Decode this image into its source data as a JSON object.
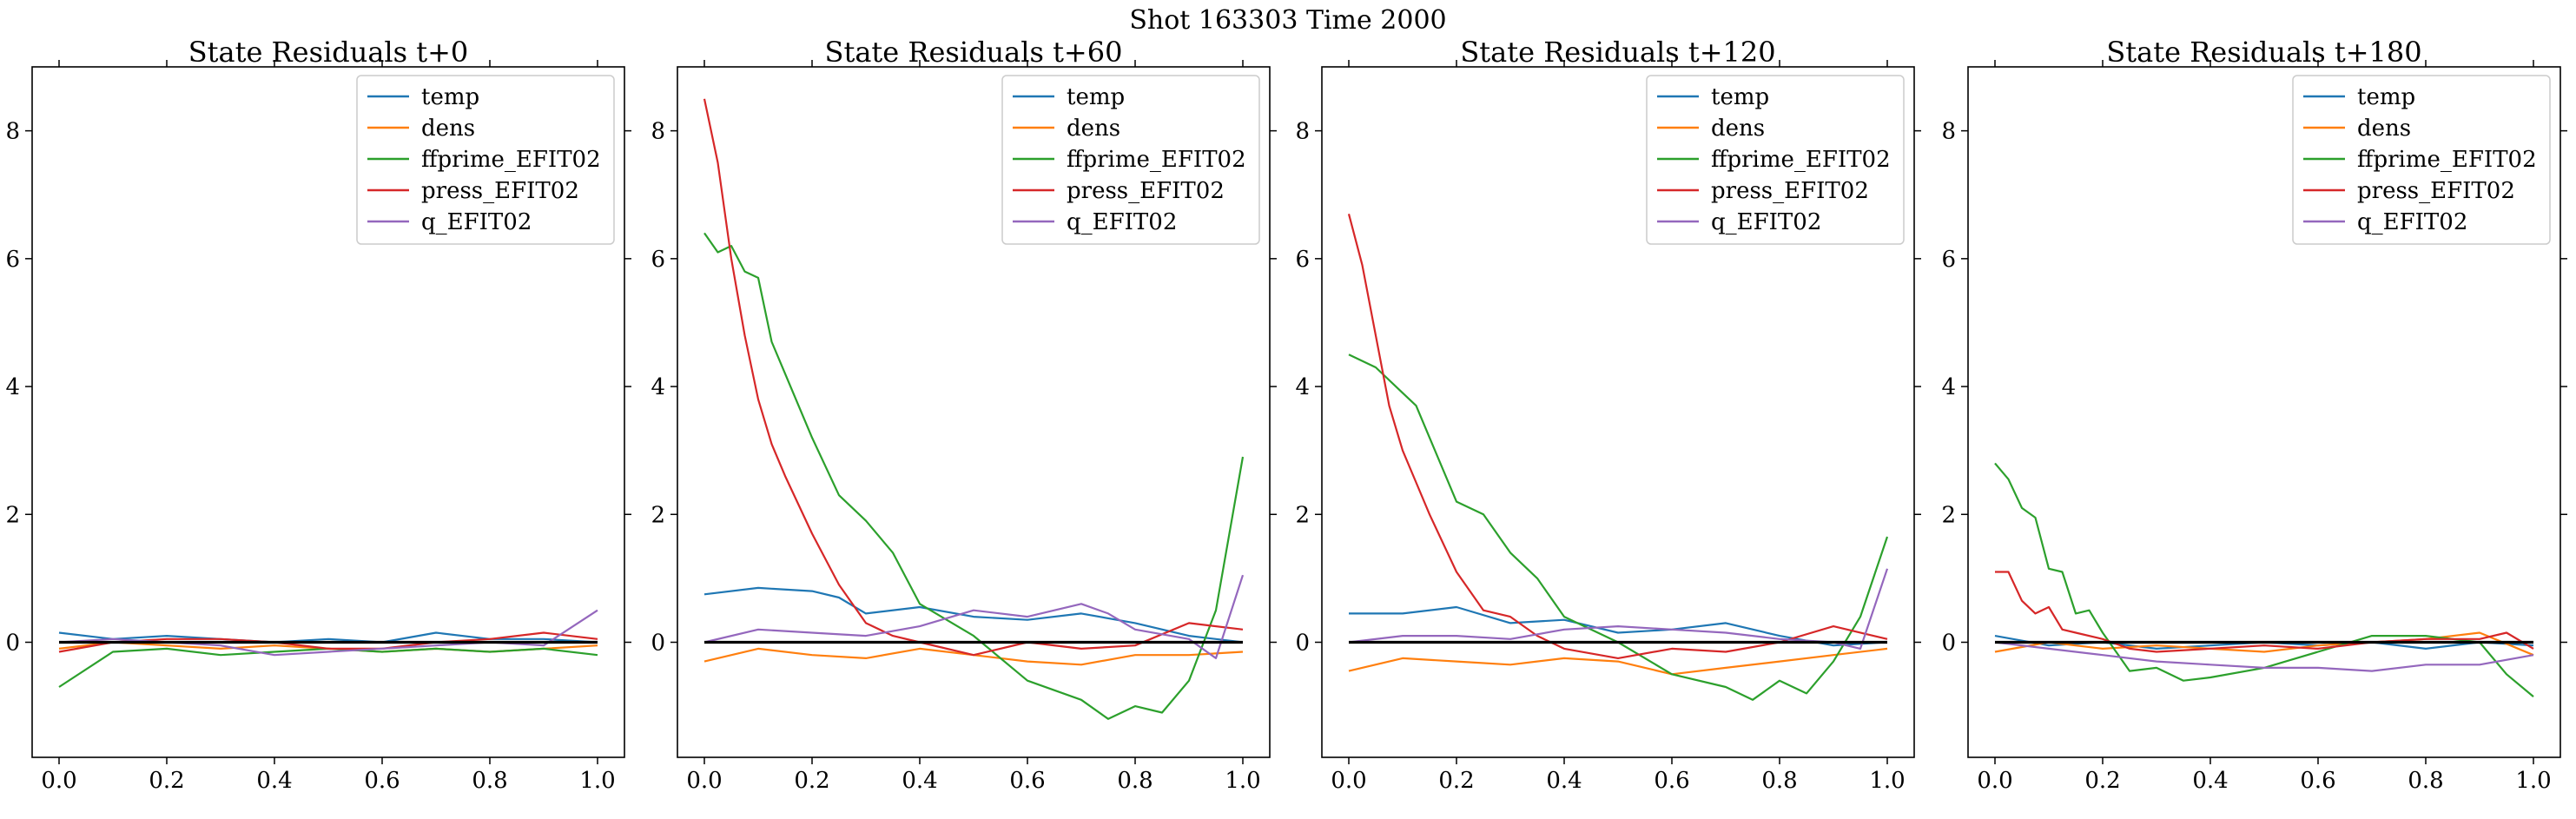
{
  "figure": {
    "suptitle": "Shot 163303   Time 2000"
  },
  "chart_data": [
    {
      "type": "line",
      "title": "State Residuals t+0",
      "xlabel": "",
      "ylabel": "",
      "xlim": [
        -0.05,
        1.05
      ],
      "ylim": [
        -1.8,
        9.0
      ],
      "xticks": [
        0.0,
        0.2,
        0.4,
        0.6,
        0.8,
        1.0
      ],
      "xtick_labels": [
        "0.0",
        "0.2",
        "0.4",
        "0.6",
        "0.8",
        "1.0"
      ],
      "yticks": [
        0,
        2,
        4,
        6,
        8
      ],
      "ytick_labels": [
        "0",
        "2",
        "4",
        "6",
        "8"
      ],
      "zero_line": true,
      "grid": false,
      "legend": "top-right",
      "series": [
        {
          "name": "temp",
          "color": "#1f77b4",
          "x": [
            0.0,
            0.1,
            0.2,
            0.3,
            0.4,
            0.5,
            0.6,
            0.7,
            0.8,
            0.9,
            1.0
          ],
          "y": [
            0.15,
            0.05,
            0.1,
            0.05,
            0.0,
            0.05,
            0.0,
            0.15,
            0.05,
            0.05,
            0.0
          ]
        },
        {
          "name": "dens",
          "color": "#ff7f0e",
          "x": [
            0.0,
            0.1,
            0.2,
            0.3,
            0.4,
            0.5,
            0.6,
            0.7,
            0.8,
            0.9,
            1.0
          ],
          "y": [
            -0.1,
            0.0,
            -0.05,
            -0.1,
            -0.05,
            -0.1,
            -0.15,
            -0.1,
            -0.15,
            -0.1,
            -0.05
          ]
        },
        {
          "name": "ffprime_EFIT02",
          "color": "#2ca02c",
          "x": [
            0.0,
            0.1,
            0.2,
            0.3,
            0.4,
            0.5,
            0.6,
            0.7,
            0.8,
            0.9,
            1.0
          ],
          "y": [
            -0.7,
            -0.15,
            -0.1,
            -0.2,
            -0.15,
            -0.1,
            -0.15,
            -0.1,
            -0.15,
            -0.1,
            -0.2
          ]
        },
        {
          "name": "press_EFIT02",
          "color": "#d62728",
          "x": [
            0.0,
            0.1,
            0.2,
            0.3,
            0.4,
            0.5,
            0.6,
            0.7,
            0.8,
            0.9,
            1.0
          ],
          "y": [
            -0.15,
            0.0,
            0.05,
            0.05,
            0.0,
            -0.1,
            -0.1,
            0.0,
            0.05,
            0.15,
            0.05
          ]
        },
        {
          "name": "q_EFIT02",
          "color": "#9467bd",
          "x": [
            0.0,
            0.1,
            0.2,
            0.3,
            0.4,
            0.5,
            0.6,
            0.7,
            0.8,
            0.9,
            1.0
          ],
          "y": [
            0.0,
            0.05,
            0.0,
            -0.05,
            -0.2,
            -0.15,
            -0.1,
            -0.05,
            0.0,
            -0.05,
            0.5
          ]
        }
      ]
    },
    {
      "type": "line",
      "title": "State Residuals t+60",
      "xlabel": "",
      "ylabel": "",
      "xlim": [
        -0.05,
        1.05
      ],
      "ylim": [
        -1.8,
        9.0
      ],
      "xticks": [
        0.0,
        0.2,
        0.4,
        0.6,
        0.8,
        1.0
      ],
      "xtick_labels": [
        "0.0",
        "0.2",
        "0.4",
        "0.6",
        "0.8",
        "1.0"
      ],
      "yticks": [
        0,
        2,
        4,
        6,
        8
      ],
      "ytick_labels": [
        "0",
        "2",
        "4",
        "6",
        "8"
      ],
      "zero_line": true,
      "grid": false,
      "legend": "top-right",
      "series": [
        {
          "name": "temp",
          "color": "#1f77b4",
          "x": [
            0.0,
            0.1,
            0.2,
            0.25,
            0.3,
            0.4,
            0.5,
            0.6,
            0.7,
            0.8,
            0.9,
            1.0
          ],
          "y": [
            0.75,
            0.85,
            0.8,
            0.7,
            0.45,
            0.55,
            0.4,
            0.35,
            0.45,
            0.3,
            0.1,
            0.0
          ]
        },
        {
          "name": "dens",
          "color": "#ff7f0e",
          "x": [
            0.0,
            0.1,
            0.2,
            0.3,
            0.4,
            0.5,
            0.6,
            0.7,
            0.8,
            0.9,
            1.0
          ],
          "y": [
            -0.3,
            -0.1,
            -0.2,
            -0.25,
            -0.1,
            -0.2,
            -0.3,
            -0.35,
            -0.2,
            -0.2,
            -0.15
          ]
        },
        {
          "name": "ffprime_EFIT02",
          "color": "#2ca02c",
          "x": [
            0.0,
            0.025,
            0.05,
            0.075,
            0.1,
            0.125,
            0.15,
            0.2,
            0.25,
            0.3,
            0.35,
            0.4,
            0.5,
            0.6,
            0.7,
            0.75,
            0.8,
            0.85,
            0.9,
            0.95,
            1.0
          ],
          "y": [
            6.4,
            6.1,
            6.2,
            5.8,
            5.7,
            4.7,
            4.2,
            3.2,
            2.3,
            1.9,
            1.4,
            0.6,
            0.1,
            -0.6,
            -0.9,
            -1.2,
            -1.0,
            -1.1,
            -0.6,
            0.5,
            2.9
          ]
        },
        {
          "name": "press_EFIT02",
          "color": "#d62728",
          "x": [
            0.0,
            0.025,
            0.05,
            0.075,
            0.1,
            0.125,
            0.15,
            0.2,
            0.25,
            0.3,
            0.35,
            0.4,
            0.5,
            0.6,
            0.7,
            0.8,
            0.9,
            1.0
          ],
          "y": [
            8.5,
            7.5,
            6.0,
            4.8,
            3.8,
            3.1,
            2.6,
            1.7,
            0.9,
            0.3,
            0.1,
            0.0,
            -0.2,
            0.0,
            -0.1,
            -0.05,
            0.3,
            0.2
          ]
        },
        {
          "name": "q_EFIT02",
          "color": "#9467bd",
          "x": [
            0.0,
            0.1,
            0.2,
            0.3,
            0.4,
            0.5,
            0.6,
            0.7,
            0.75,
            0.8,
            0.9,
            0.95,
            1.0
          ],
          "y": [
            0.0,
            0.2,
            0.15,
            0.1,
            0.25,
            0.5,
            0.4,
            0.6,
            0.45,
            0.2,
            0.05,
            -0.25,
            1.05
          ]
        }
      ]
    },
    {
      "type": "line",
      "title": "State Residuals t+120",
      "xlabel": "",
      "ylabel": "",
      "xlim": [
        -0.05,
        1.05
      ],
      "ylim": [
        -1.8,
        9.0
      ],
      "xticks": [
        0.0,
        0.2,
        0.4,
        0.6,
        0.8,
        1.0
      ],
      "xtick_labels": [
        "0.0",
        "0.2",
        "0.4",
        "0.6",
        "0.8",
        "1.0"
      ],
      "yticks": [
        0,
        2,
        4,
        6,
        8
      ],
      "ytick_labels": [
        "0",
        "2",
        "4",
        "6",
        "8"
      ],
      "zero_line": true,
      "grid": false,
      "legend": "top-right",
      "series": [
        {
          "name": "temp",
          "color": "#1f77b4",
          "x": [
            0.0,
            0.1,
            0.2,
            0.3,
            0.4,
            0.5,
            0.6,
            0.7,
            0.8,
            0.9,
            1.0
          ],
          "y": [
            0.45,
            0.45,
            0.55,
            0.3,
            0.35,
            0.15,
            0.2,
            0.3,
            0.1,
            -0.05,
            0.0
          ]
        },
        {
          "name": "dens",
          "color": "#ff7f0e",
          "x": [
            0.0,
            0.1,
            0.2,
            0.3,
            0.4,
            0.5,
            0.6,
            0.7,
            0.8,
            0.9,
            1.0
          ],
          "y": [
            -0.45,
            -0.25,
            -0.3,
            -0.35,
            -0.25,
            -0.3,
            -0.5,
            -0.4,
            -0.3,
            -0.2,
            -0.1
          ]
        },
        {
          "name": "ffprime_EFIT02",
          "color": "#2ca02c",
          "x": [
            0.0,
            0.05,
            0.1,
            0.125,
            0.15,
            0.2,
            0.25,
            0.3,
            0.35,
            0.4,
            0.5,
            0.6,
            0.7,
            0.75,
            0.8,
            0.85,
            0.9,
            0.95,
            1.0
          ],
          "y": [
            4.5,
            4.3,
            3.9,
            3.7,
            3.2,
            2.2,
            2.0,
            1.4,
            1.0,
            0.4,
            0.0,
            -0.5,
            -0.7,
            -0.9,
            -0.6,
            -0.8,
            -0.3,
            0.4,
            1.65
          ]
        },
        {
          "name": "press_EFIT02",
          "color": "#d62728",
          "x": [
            0.0,
            0.025,
            0.05,
            0.075,
            0.1,
            0.125,
            0.15,
            0.2,
            0.25,
            0.3,
            0.35,
            0.4,
            0.5,
            0.6,
            0.7,
            0.8,
            0.9,
            1.0
          ],
          "y": [
            6.7,
            5.9,
            4.8,
            3.7,
            3.0,
            2.5,
            2.0,
            1.1,
            0.5,
            0.4,
            0.1,
            -0.1,
            -0.25,
            -0.1,
            -0.15,
            0.0,
            0.25,
            0.05
          ]
        },
        {
          "name": "q_EFIT02",
          "color": "#9467bd",
          "x": [
            0.0,
            0.1,
            0.2,
            0.3,
            0.4,
            0.5,
            0.6,
            0.7,
            0.8,
            0.9,
            0.95,
            1.0
          ],
          "y": [
            0.0,
            0.1,
            0.1,
            0.05,
            0.2,
            0.25,
            0.2,
            0.15,
            0.05,
            0.0,
            -0.1,
            1.15
          ]
        }
      ]
    },
    {
      "type": "line",
      "title": "State Residuals t+180",
      "xlabel": "",
      "ylabel": "",
      "xlim": [
        -0.05,
        1.05
      ],
      "ylim": [
        -1.8,
        9.0
      ],
      "xticks": [
        0.0,
        0.2,
        0.4,
        0.6,
        0.8,
        1.0
      ],
      "xtick_labels": [
        "0.0",
        "0.2",
        "0.4",
        "0.6",
        "0.8",
        "1.0"
      ],
      "yticks": [
        0,
        2,
        4,
        6,
        8
      ],
      "ytick_labels": [
        "0",
        "2",
        "4",
        "6",
        "8"
      ],
      "zero_line": true,
      "grid": false,
      "legend": "top-right",
      "series": [
        {
          "name": "temp",
          "color": "#1f77b4",
          "x": [
            0.0,
            0.1,
            0.2,
            0.3,
            0.4,
            0.5,
            0.6,
            0.7,
            0.8,
            0.9,
            1.0
          ],
          "y": [
            0.1,
            -0.05,
            0.0,
            -0.1,
            -0.05,
            0.0,
            -0.05,
            0.0,
            -0.1,
            0.0,
            -0.05
          ]
        },
        {
          "name": "dens",
          "color": "#ff7f0e",
          "x": [
            0.0,
            0.1,
            0.2,
            0.3,
            0.4,
            0.5,
            0.6,
            0.7,
            0.8,
            0.9,
            1.0
          ],
          "y": [
            -0.15,
            0.0,
            -0.1,
            -0.05,
            -0.1,
            -0.15,
            -0.05,
            0.0,
            0.05,
            0.15,
            -0.2
          ]
        },
        {
          "name": "ffprime_EFIT02",
          "color": "#2ca02c",
          "x": [
            0.0,
            0.025,
            0.05,
            0.075,
            0.1,
            0.125,
            0.15,
            0.175,
            0.2,
            0.25,
            0.3,
            0.35,
            0.4,
            0.5,
            0.6,
            0.7,
            0.8,
            0.9,
            0.95,
            1.0
          ],
          "y": [
            2.8,
            2.55,
            2.1,
            1.95,
            1.15,
            1.1,
            0.45,
            0.5,
            0.15,
            -0.45,
            -0.4,
            -0.6,
            -0.55,
            -0.4,
            -0.15,
            0.1,
            0.1,
            0.0,
            -0.5,
            -0.85
          ]
        },
        {
          "name": "press_EFIT02",
          "color": "#d62728",
          "x": [
            0.0,
            0.025,
            0.05,
            0.075,
            0.1,
            0.125,
            0.15,
            0.2,
            0.25,
            0.3,
            0.4,
            0.5,
            0.6,
            0.7,
            0.8,
            0.9,
            0.95,
            1.0
          ],
          "y": [
            1.1,
            1.1,
            0.65,
            0.45,
            0.55,
            0.2,
            0.15,
            0.05,
            -0.1,
            -0.15,
            -0.1,
            -0.05,
            -0.1,
            0.0,
            0.05,
            0.05,
            0.15,
            -0.1
          ]
        },
        {
          "name": "q_EFIT02",
          "color": "#9467bd",
          "x": [
            0.0,
            0.1,
            0.2,
            0.3,
            0.4,
            0.5,
            0.6,
            0.7,
            0.8,
            0.9,
            1.0
          ],
          "y": [
            0.0,
            -0.1,
            -0.2,
            -0.3,
            -0.35,
            -0.4,
            -0.4,
            -0.45,
            -0.35,
            -0.35,
            -0.2
          ]
        }
      ]
    }
  ]
}
